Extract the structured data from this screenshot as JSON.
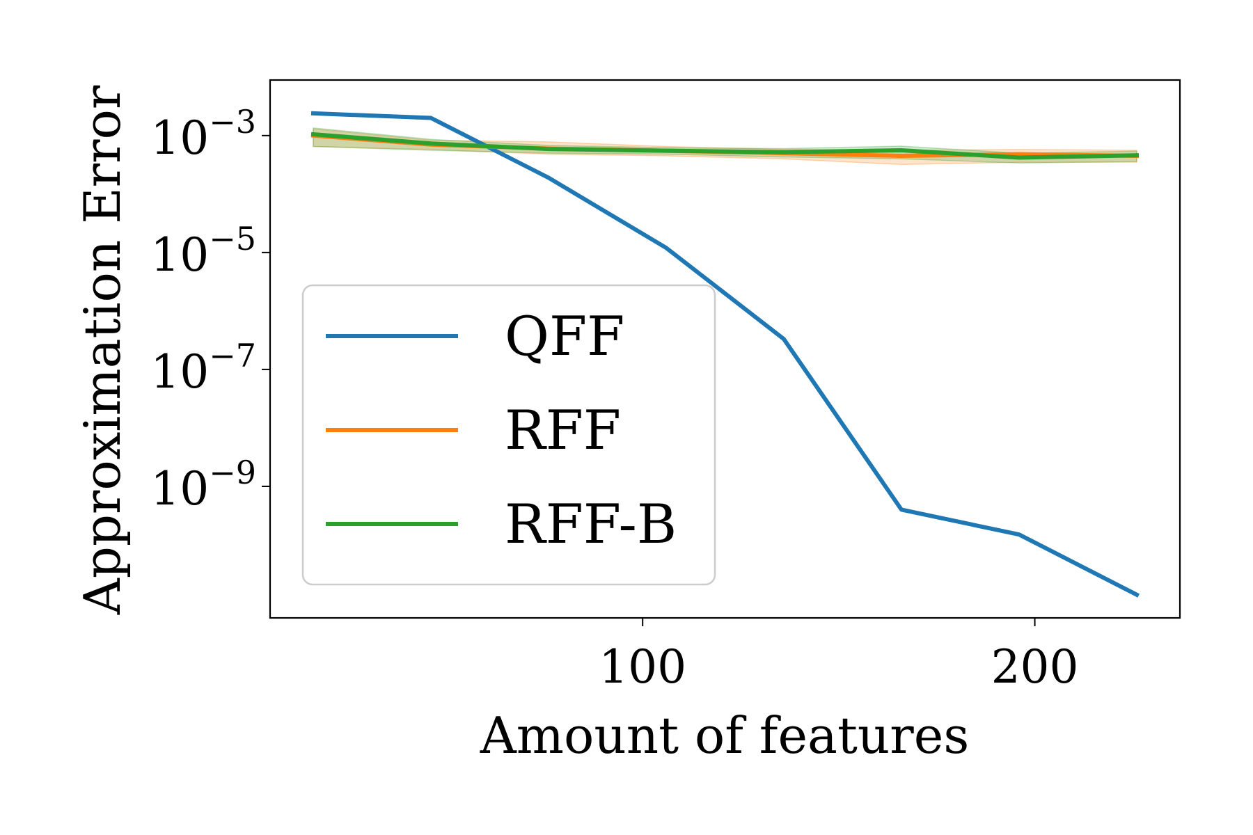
{
  "chart_data": {
    "type": "line",
    "xlabel": "Amount of features",
    "ylabel": "Approximation Error",
    "yscale": "log",
    "grid": false,
    "legend_position": "center-left",
    "xlim": [
      5,
      237
    ],
    "ylim_exponent": [
      -11.25,
      -2.05
    ],
    "xticks": [
      {
        "value": 100,
        "label": "100"
      },
      {
        "value": 200,
        "label": "200"
      }
    ],
    "yticks": [
      {
        "exponent": -3,
        "base": "10",
        "sup": "−3"
      },
      {
        "exponent": -5,
        "base": "10",
        "sup": "−5"
      },
      {
        "exponent": -7,
        "base": "10",
        "sup": "−7"
      },
      {
        "exponent": -9,
        "base": "10",
        "sup": "−9"
      }
    ],
    "x": [
      16,
      46,
      76,
      106,
      136,
      166,
      196,
      226
    ],
    "series": [
      {
        "name": "QFF",
        "color": "#1f77b4",
        "y": [
          0.0024,
          0.002,
          0.00019,
          1.2e-05,
          3.3e-07,
          4e-10,
          1.5e-10,
          1.4e-11
        ]
      },
      {
        "name": "RFF",
        "color": "#ff7f0e",
        "y": [
          0.001,
          0.0007,
          0.0006,
          0.00055,
          0.0005,
          0.00045,
          0.00048,
          0.00045
        ],
        "y_low": [
          0.00065,
          0.00058,
          0.00048,
          0.00045,
          0.0004,
          0.00032,
          0.00035,
          0.00035
        ],
        "y_high": [
          0.0013,
          0.00083,
          0.00078,
          0.00065,
          0.00058,
          0.00056,
          0.00058,
          0.00056
        ]
      },
      {
        "name": "RFF-B",
        "color": "#2ca02c",
        "y": [
          0.00105,
          0.00073,
          0.00059,
          0.00055,
          0.00052,
          0.00056,
          0.00042,
          0.00046
        ],
        "y_low": [
          0.00065,
          0.00056,
          0.0005,
          0.00048,
          0.00043,
          0.0004,
          0.00034,
          0.00036
        ],
        "y_high": [
          0.00135,
          0.00086,
          0.00068,
          0.00062,
          0.0006,
          0.00066,
          0.0005,
          0.00054
        ]
      }
    ]
  }
}
